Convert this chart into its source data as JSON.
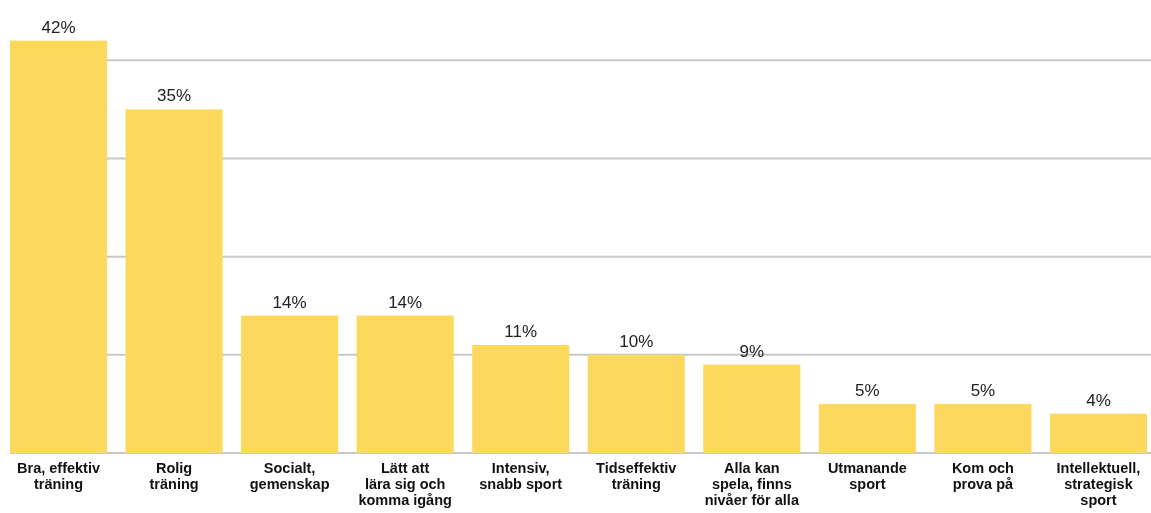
{
  "chart_data": {
    "type": "bar",
    "categories": [
      "Bra, effektiv\nträning",
      "Rolig\nträning",
      "Socialt,\ngemenskap",
      "Lätt att\nlära sig och\nkomma igång",
      "Intensiv,\nsnabb sport",
      "Tidseffektiv\nträning",
      "Alla kan\nspela, finns\nnivåer för alla",
      "Utmanande\nsport",
      "Kom och\nprova på",
      "Intellektuell,\nstrategisk\nsport"
    ],
    "values": [
      42,
      35,
      14,
      14,
      11,
      10,
      9,
      5,
      5,
      4
    ],
    "color": "#fcd95c",
    "yticks": [
      {
        "value": 0,
        "label": null
      },
      {
        "value": 10,
        "label": null
      },
      {
        "value": 20,
        "label": null
      },
      {
        "value": 30,
        "label": null
      },
      {
        "value": 40,
        "label": null
      }
    ],
    "tick_labels": "x",
    "grid": "y",
    "value_labels": [
      "42%",
      "35%",
      "14%",
      "14%",
      "11%",
      "10%",
      "9%",
      "5%",
      "5%",
      "4%"
    ]
  }
}
